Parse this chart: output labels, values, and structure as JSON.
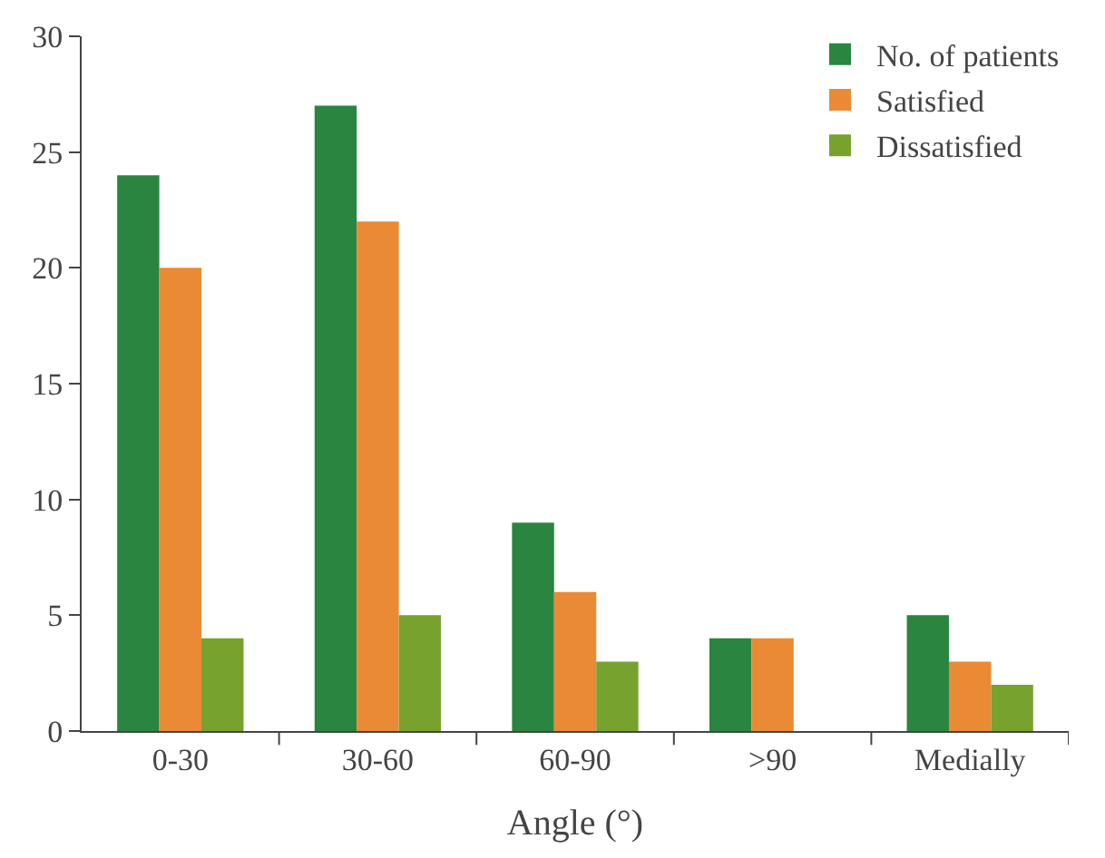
{
  "chart_data": {
    "type": "bar",
    "xlabel": "Angle (°)",
    "categories": [
      "0-30",
      "30-60",
      "60-90",
      ">90",
      "Medially"
    ],
    "series": [
      {
        "name": "No. of patients",
        "color": "#2a8540",
        "values": [
          24,
          27,
          9,
          4,
          5
        ]
      },
      {
        "name": "Satisfied",
        "color": "#ea8a35",
        "values": [
          20,
          22,
          6,
          4,
          3
        ]
      },
      {
        "name": "Dissatisfied",
        "color": "#77a22e",
        "values": [
          4,
          5,
          3,
          null,
          2
        ]
      }
    ],
    "ylim": [
      0,
      30
    ],
    "yticks": [
      0,
      5,
      10,
      15,
      20,
      25,
      30
    ],
    "grid": false,
    "legend": "top right"
  }
}
